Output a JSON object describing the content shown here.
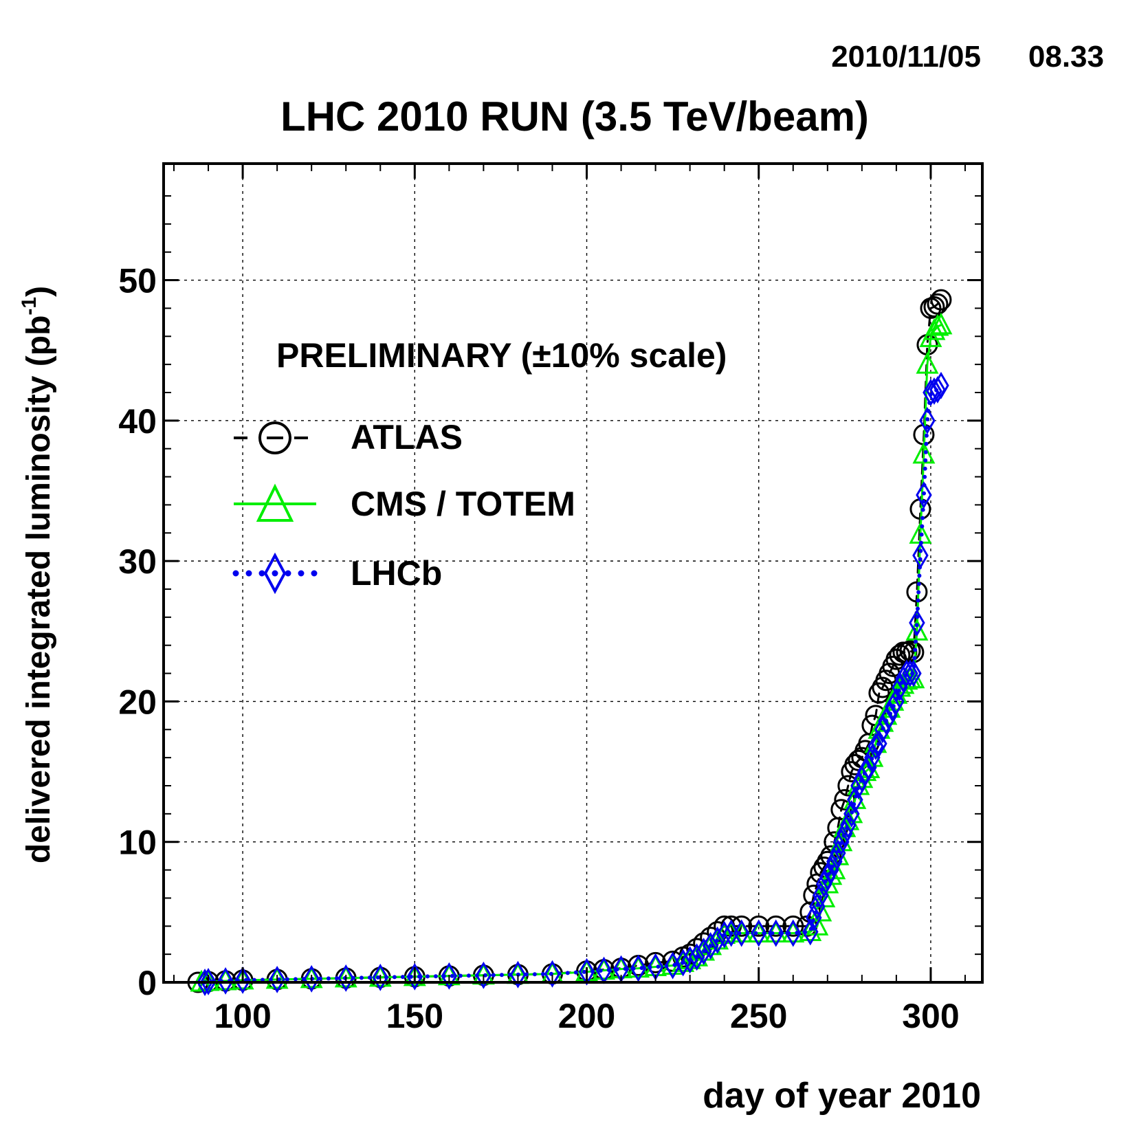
{
  "header": {
    "date": "2010/11/05",
    "time": "08.33"
  },
  "chart_data": {
    "type": "scatter",
    "title": "LHC 2010 RUN (3.5 TeV/beam)",
    "xlabel": "day of year 2010",
    "ylabel_main": "delivered integrated luminosity (pb",
    "ylabel_sup": "-1",
    "ylabel_close": ")",
    "xlim": [
      77,
      315
    ],
    "ylim": [
      0,
      58.3
    ],
    "xticks": [
      100,
      150,
      200,
      250,
      300
    ],
    "yticks": [
      0,
      10,
      20,
      30,
      40,
      50
    ],
    "grid": true,
    "annotation": "PRELIMINARY (±10% scale)",
    "legend_position": "upper-left",
    "series": [
      {
        "name": "ATLAS",
        "marker": "circle",
        "line": "dashed",
        "color": "#000000",
        "x": [
          87,
          90,
          95,
          100,
          110,
          120,
          130,
          140,
          150,
          160,
          170,
          180,
          190,
          200,
          205,
          210,
          215,
          220,
          225,
          228,
          230,
          232,
          234,
          236,
          238,
          240,
          242,
          245,
          250,
          255,
          260,
          264,
          265,
          266,
          267,
          268,
          269,
          270,
          271,
          272,
          273,
          274,
          275,
          276,
          277,
          278,
          279,
          280,
          281,
          282,
          283,
          284,
          285,
          286,
          287,
          288,
          289,
          290,
          291,
          292,
          293,
          294,
          295,
          296,
          297,
          298,
          299,
          300,
          301,
          302,
          303
        ],
        "y": [
          0.0,
          0.05,
          0.1,
          0.15,
          0.2,
          0.25,
          0.3,
          0.35,
          0.4,
          0.45,
          0.5,
          0.55,
          0.6,
          0.8,
          0.9,
          1.0,
          1.2,
          1.4,
          1.5,
          1.8,
          2.0,
          2.4,
          2.8,
          3.2,
          3.6,
          4.0,
          4.0,
          4.0,
          4.0,
          4.0,
          4.0,
          4.0,
          5.0,
          6.2,
          7.0,
          7.8,
          8.2,
          8.6,
          9.0,
          10.0,
          11.0,
          12.3,
          13.0,
          14.0,
          15.0,
          15.5,
          15.8,
          16.0,
          16.5,
          17.0,
          18.3,
          19.0,
          20.6,
          21.0,
          21.5,
          22.0,
          22.5,
          23.0,
          23.3,
          23.5,
          23.5,
          23.6,
          23.5,
          27.8,
          33.7,
          39.0,
          45.4,
          48.0,
          48.1,
          48.3,
          48.6
        ]
      },
      {
        "name": "CMS / TOTEM",
        "marker": "triangle",
        "line": "solid",
        "color": "#00ee00",
        "x": [
          88,
          90,
          95,
          100,
          110,
          120,
          130,
          140,
          150,
          160,
          170,
          180,
          190,
          200,
          205,
          210,
          215,
          220,
          225,
          228,
          230,
          232,
          234,
          236,
          238,
          240,
          242,
          245,
          250,
          255,
          260,
          265,
          267,
          268,
          269,
          270,
          271,
          272,
          273,
          274,
          275,
          276,
          277,
          278,
          279,
          280,
          281,
          282,
          283,
          284,
          285,
          286,
          287,
          288,
          289,
          290,
          291,
          292,
          293,
          294,
          295,
          296,
          297,
          298,
          299,
          300,
          301,
          302,
          303
        ],
        "y": [
          0.0,
          0.05,
          0.1,
          0.15,
          0.2,
          0.25,
          0.3,
          0.35,
          0.4,
          0.45,
          0.5,
          0.55,
          0.6,
          0.75,
          0.85,
          0.95,
          1.0,
          1.1,
          1.2,
          1.4,
          1.6,
          1.8,
          2.2,
          2.6,
          3.0,
          3.4,
          3.5,
          3.5,
          3.5,
          3.5,
          3.5,
          3.6,
          4.0,
          5.0,
          6.0,
          7.0,
          7.6,
          8.0,
          9.0,
          10.0,
          11.0,
          11.5,
          12.0,
          13.0,
          14.0,
          14.5,
          15.0,
          15.2,
          16.0,
          17.0,
          18.0,
          18.5,
          19.0,
          19.5,
          20.0,
          20.5,
          21.0,
          21.2,
          21.5,
          21.6,
          21.6,
          25.0,
          31.9,
          37.6,
          44.0,
          45.9,
          46.4,
          46.7,
          46.8
        ]
      },
      {
        "name": "LHCb",
        "marker": "diamond",
        "line": "dotted",
        "color": "#0000ee",
        "x": [
          89,
          90,
          95,
          100,
          110,
          120,
          130,
          140,
          150,
          160,
          170,
          180,
          190,
          200,
          205,
          210,
          215,
          220,
          225,
          228,
          230,
          232,
          234,
          236,
          238,
          240,
          242,
          245,
          250,
          255,
          260,
          265,
          266,
          267,
          268,
          269,
          270,
          271,
          272,
          273,
          274,
          275,
          276,
          277,
          278,
          279,
          280,
          281,
          282,
          283,
          284,
          285,
          286,
          287,
          288,
          289,
          290,
          291,
          292,
          293,
          294,
          295,
          296,
          297,
          298,
          299,
          300,
          301,
          302,
          303
        ],
        "y": [
          0.0,
          0.05,
          0.1,
          0.15,
          0.2,
          0.25,
          0.3,
          0.35,
          0.4,
          0.45,
          0.5,
          0.55,
          0.6,
          0.75,
          0.85,
          0.95,
          1.0,
          1.1,
          1.2,
          1.4,
          1.6,
          1.8,
          2.2,
          2.6,
          3.0,
          3.4,
          3.5,
          3.5,
          3.5,
          3.5,
          3.5,
          3.6,
          4.6,
          5.4,
          6.2,
          7.0,
          7.5,
          8.0,
          8.6,
          9.2,
          10.0,
          10.6,
          11.2,
          12.0,
          13.0,
          14.0,
          14.5,
          15.0,
          15.3,
          16.0,
          16.8,
          17.0,
          18.0,
          18.6,
          19.0,
          19.6,
          20.0,
          21.0,
          21.6,
          22.0,
          22.0,
          22.0,
          25.6,
          30.4,
          34.7,
          40.0,
          42.0,
          42.1,
          42.2,
          42.5
        ]
      }
    ]
  }
}
